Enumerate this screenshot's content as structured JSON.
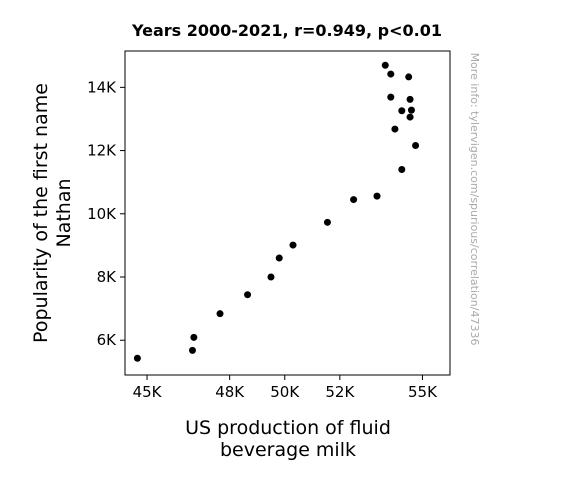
{
  "chart_data": {
    "type": "scatter",
    "title": "Years 2000-2021, r=0.949, p<0.01",
    "xlabel_lines": [
      "US production of fluid",
      "beverage milk"
    ],
    "ylabel_lines": [
      "Popularity of the first name",
      "Nathan"
    ],
    "side_note": "More info: tylervigen.com/spurious/correlation/47336",
    "xlim": [
      44200,
      56000
    ],
    "ylim": [
      4900,
      15150
    ],
    "xticks": [
      {
        "value": 45000,
        "label": "45K"
      },
      {
        "value": 48000,
        "label": "48K"
      },
      {
        "value": 50000,
        "label": "50K"
      },
      {
        "value": 52000,
        "label": "52K"
      },
      {
        "value": 55000,
        "label": "55K"
      }
    ],
    "yticks": [
      {
        "value": 6000,
        "label": "6K"
      },
      {
        "value": 8000,
        "label": "8K"
      },
      {
        "value": 10000,
        "label": "10K"
      },
      {
        "value": 12000,
        "label": "12K"
      },
      {
        "value": 14000,
        "label": "14K"
      }
    ],
    "points": [
      {
        "x": 44650,
        "y": 5430
      },
      {
        "x": 46650,
        "y": 5680
      },
      {
        "x": 46700,
        "y": 6090
      },
      {
        "x": 47650,
        "y": 6840
      },
      {
        "x": 48650,
        "y": 7440
      },
      {
        "x": 49500,
        "y": 8000
      },
      {
        "x": 49800,
        "y": 8600
      },
      {
        "x": 50300,
        "y": 9010
      },
      {
        "x": 51550,
        "y": 9730
      },
      {
        "x": 52500,
        "y": 10450
      },
      {
        "x": 53350,
        "y": 10560
      },
      {
        "x": 54250,
        "y": 11400
      },
      {
        "x": 54000,
        "y": 12680
      },
      {
        "x": 54250,
        "y": 13260
      },
      {
        "x": 54600,
        "y": 13280
      },
      {
        "x": 54750,
        "y": 12160
      },
      {
        "x": 54550,
        "y": 13060
      },
      {
        "x": 54550,
        "y": 13620
      },
      {
        "x": 53850,
        "y": 13690
      },
      {
        "x": 54500,
        "y": 14330
      },
      {
        "x": 53850,
        "y": 14420
      },
      {
        "x": 53650,
        "y": 14700
      }
    ]
  }
}
